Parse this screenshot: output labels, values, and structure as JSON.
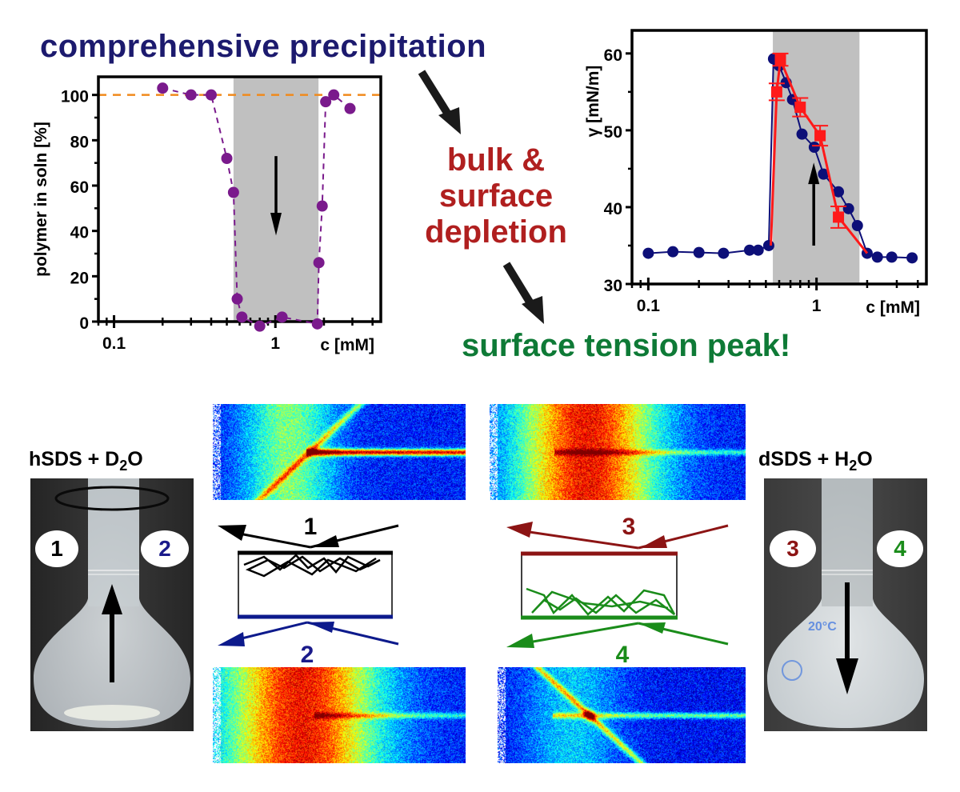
{
  "headings": {
    "precipitation": "comprehensive precipitation",
    "depletion_lines": [
      "bulk &",
      "surface",
      "depletion"
    ],
    "peak": "surface tension peak!"
  },
  "colors": {
    "heading_blue": "#1c1a6e",
    "heading_red": "#b01f1f",
    "heading_green": "#0e7a36",
    "purple_series": "#7a1a8c",
    "orange_reference": "#f08a1c",
    "navy_series": "#0d0f78",
    "red_series": "#ff1a1a",
    "shade": "#c0c0c0",
    "beam_1": "#000000",
    "beam_2": "#0d1a8c",
    "beam_3": "#8c1414",
    "beam_4": "#1a8c1a"
  },
  "chart_data": [
    {
      "type": "scatter",
      "title": "",
      "xlabel": "c [mM]",
      "ylabel": "polymer in soln [%]",
      "xscale": "log",
      "xlim": [
        0.08,
        4.5
      ],
      "ylim": [
        0,
        108
      ],
      "yticks": [
        0,
        20,
        40,
        60,
        80,
        100
      ],
      "xtick_labels": [
        "0.1",
        "1"
      ],
      "xticks_major": [
        0.1,
        1
      ],
      "reference_line": {
        "y": 100,
        "style": "dashed",
        "color": "orange"
      },
      "shaded_region": {
        "x": [
          0.55,
          1.85
        ]
      },
      "annotation": "downward arrow in shaded region",
      "grid": false,
      "series": [
        {
          "name": "polymer in solution",
          "style": "circles, dashed line",
          "x": [
            0.2,
            0.3,
            0.4,
            0.5,
            0.55,
            0.58,
            0.62,
            0.8,
            1.1,
            1.82,
            1.86,
            1.95,
            2.05,
            2.3,
            2.9
          ],
          "y": [
            103,
            100,
            100,
            72,
            57,
            10,
            2,
            -2,
            2,
            -1,
            26,
            51,
            97,
            100,
            94
          ]
        }
      ]
    },
    {
      "type": "line",
      "title": "",
      "xlabel": "c [mM]",
      "ylabel": "γ [mN/m]",
      "xscale": "log",
      "xlim": [
        0.08,
        4.5
      ],
      "ylim": [
        30,
        63
      ],
      "yticks": [
        30,
        40,
        50,
        60
      ],
      "xtick_labels": [
        "0.1",
        "1"
      ],
      "xticks_major": [
        0.1,
        1
      ],
      "shaded_region": {
        "x": [
          0.55,
          1.8
        ]
      },
      "annotation": "upward arrow in shaded region",
      "grid": false,
      "series": [
        {
          "name": "surface tension (circles)",
          "style": "navy circles, solid line",
          "x": [
            0.1,
            0.14,
            0.2,
            0.28,
            0.4,
            0.45,
            0.52,
            0.555,
            0.6,
            0.66,
            0.72,
            0.82,
            0.97,
            1.1,
            1.35,
            1.55,
            1.75,
            2.0,
            2.3,
            2.8,
            3.7
          ],
          "y": [
            34.0,
            34.2,
            34.1,
            34.0,
            34.4,
            34.4,
            35.0,
            59.3,
            58.4,
            56.2,
            54.0,
            49.5,
            47.8,
            44.3,
            42.0,
            39.8,
            37.6,
            34.0,
            33.5,
            33.5,
            33.4
          ]
        },
        {
          "name": "surface tension (squares)",
          "style": "red squares with error bars, solid line",
          "x": [
            0.535,
            0.58,
            0.61,
            0.8,
            1.05,
            1.35,
            2.0
          ],
          "y": [
            35.0,
            55.0,
            59.2,
            53.0,
            49.3,
            38.7,
            34.0
          ],
          "yerr": [
            0,
            1.1,
            0.8,
            1.2,
            1.3,
            1.4,
            0
          ]
        }
      ]
    }
  ],
  "samples": {
    "left": {
      "label_main": "hSDS + D",
      "label_sub": "2",
      "label_end": "O",
      "badges": [
        "1",
        "2"
      ]
    },
    "right": {
      "label_main": "dSDS + H",
      "label_sub": "2",
      "label_end": "O",
      "badges": [
        "3",
        "4"
      ]
    }
  },
  "schematic": {
    "beam_numbers": [
      "1",
      "2",
      "3",
      "4"
    ]
  }
}
